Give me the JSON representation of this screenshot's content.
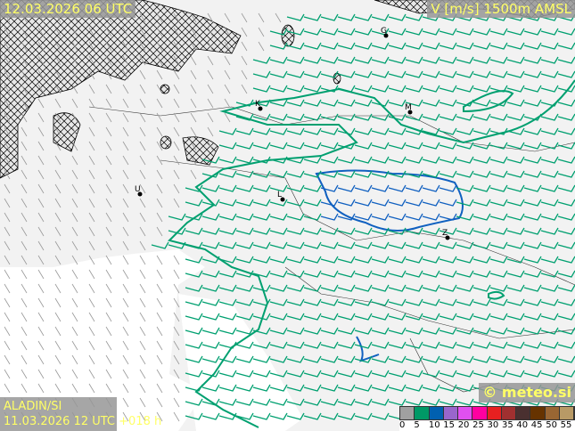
{
  "header": {
    "valid_time": "12.03.2026 06 UTC",
    "parameter": "V [m/s] 1500m AMSL"
  },
  "footer": {
    "model": "ALADIN/SI",
    "run": "11.03.2026 12 UTC +018 h",
    "copyright": "© meteo.si"
  },
  "legend": {
    "labels": [
      "0",
      "5",
      "10",
      "15",
      "20",
      "25",
      "30",
      "35",
      "40",
      "45",
      "50",
      "55"
    ],
    "colors": [
      "#a0a0a0",
      "#009966",
      "#0060b0",
      "#9966cc",
      "#e050f0",
      "#ff00a0",
      "#e82020",
      "#a03030",
      "#4a3030",
      "#663300",
      "#996633",
      "#b89a66"
    ]
  },
  "cities": [
    {
      "letter": "G"
    },
    {
      "letter": "K"
    },
    {
      "letter": "M"
    },
    {
      "letter": "U"
    },
    {
      "letter": "L"
    },
    {
      "letter": "Z"
    }
  ],
  "colors": {
    "label_text": "#ffff66",
    "contour_5": "#00a070",
    "contour_10": "#1060c0",
    "hatch": "#000000"
  }
}
